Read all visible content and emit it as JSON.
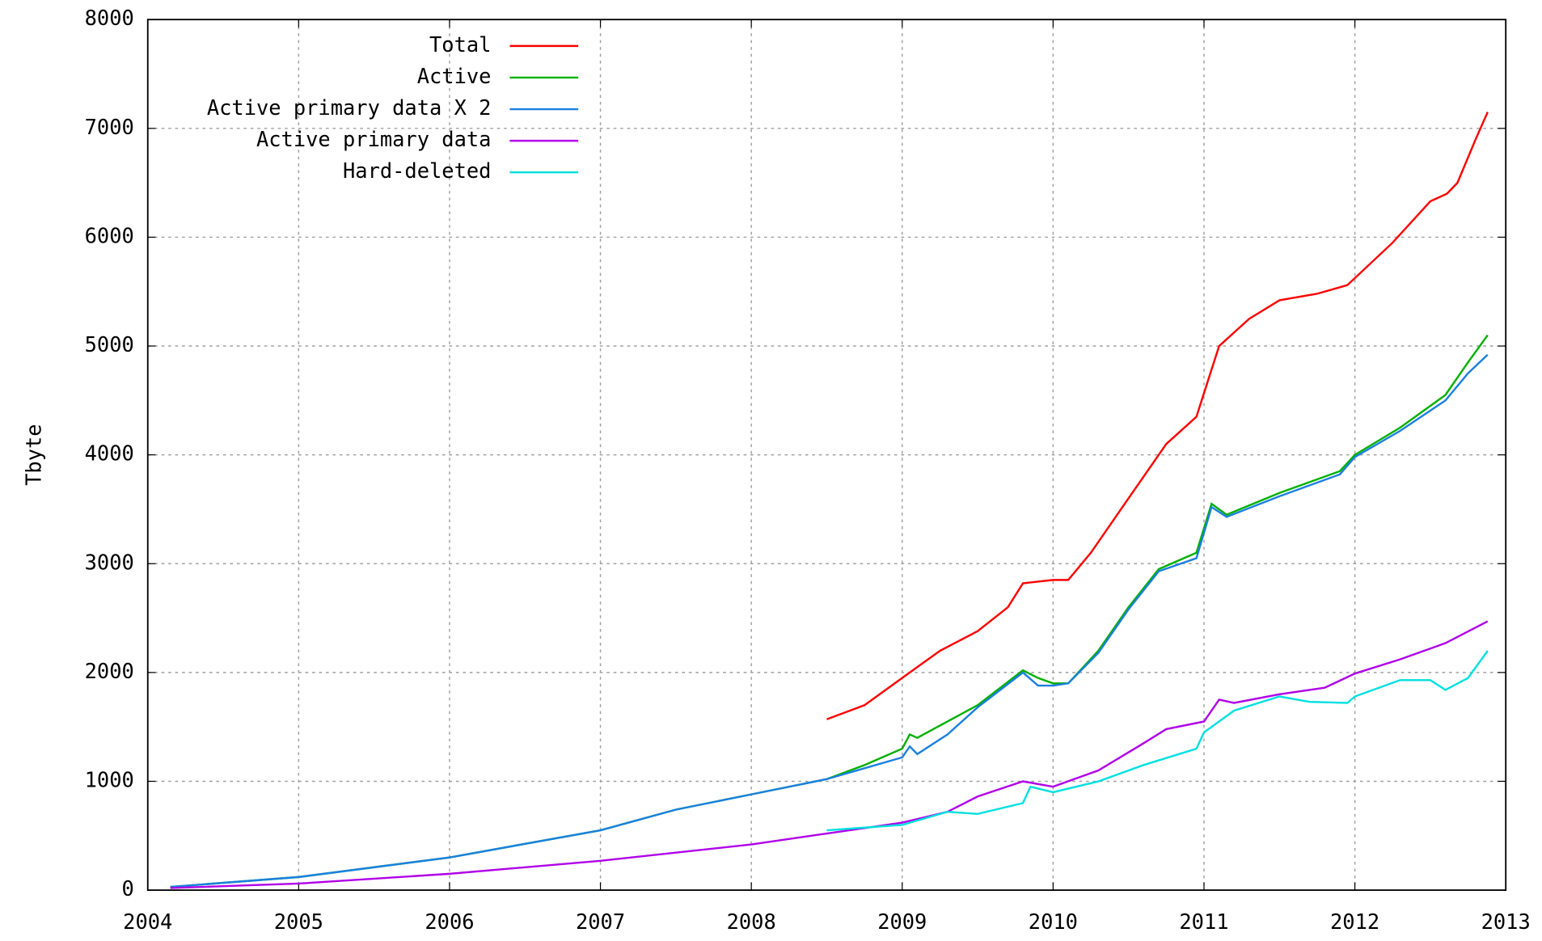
{
  "chart_data": {
    "type": "line",
    "ylabel": "Tbyte",
    "xlim": [
      2004,
      2013
    ],
    "xticks": [
      2004,
      2005,
      2006,
      2007,
      2008,
      2009,
      2010,
      2011,
      2012,
      2013
    ],
    "ylim": [
      0,
      8000
    ],
    "yticks": [
      0,
      1000,
      2000,
      3000,
      4000,
      5000,
      6000,
      7000,
      8000
    ],
    "grid": true,
    "legend": "upper left",
    "series": [
      {
        "name": "Total",
        "color": "#ff0000",
        "x": [
          2008.5,
          2008.75,
          2009.0,
          2009.25,
          2009.5,
          2009.7,
          2009.8,
          2010.0,
          2010.1,
          2010.25,
          2010.5,
          2010.75,
          2010.95,
          2011.1,
          2011.3,
          2011.5,
          2011.75,
          2011.95,
          2012.25,
          2012.5,
          2012.61,
          2012.68,
          2012.8,
          2012.88
        ],
        "values": [
          1570,
          1700,
          1950,
          2200,
          2380,
          2600,
          2820,
          2850,
          2850,
          3100,
          3600,
          4100,
          4350,
          5000,
          5250,
          5420,
          5480,
          5560,
          5950,
          6330,
          6400,
          6500,
          6900,
          7150
        ]
      },
      {
        "name": "Active",
        "color": "#00b000",
        "x": [
          2004.15,
          2005,
          2006,
          2007,
          2007.5,
          2008,
          2008.5,
          2008.75,
          2009.0,
          2009.05,
          2009.1,
          2009.3,
          2009.5,
          2009.8,
          2009.9,
          2010.0,
          2010.1,
          2010.3,
          2010.5,
          2010.7,
          2010.95,
          2011.05,
          2011.15,
          2011.5,
          2011.9,
          2012.0,
          2012.3,
          2012.6,
          2012.75,
          2012.88
        ],
        "values": [
          30,
          120,
          300,
          550,
          740,
          880,
          1020,
          1150,
          1300,
          1430,
          1400,
          1550,
          1700,
          2020,
          1950,
          1900,
          1900,
          2200,
          2600,
          2950,
          3100,
          3550,
          3450,
          3650,
          3850,
          4000,
          4250,
          4550,
          4850,
          5100
        ]
      },
      {
        "name": "Active primary data X 2",
        "color": "#1a80e0",
        "x": [
          2004.15,
          2005,
          2006,
          2007,
          2007.5,
          2008,
          2008.5,
          2008.75,
          2009.0,
          2009.05,
          2009.1,
          2009.3,
          2009.5,
          2009.8,
          2009.9,
          2010.0,
          2010.1,
          2010.3,
          2010.5,
          2010.7,
          2010.95,
          2011.05,
          2011.15,
          2011.5,
          2011.9,
          2012.0,
          2012.3,
          2012.6,
          2012.75,
          2012.88
        ],
        "values": [
          30,
          120,
          300,
          550,
          740,
          880,
          1020,
          1120,
          1220,
          1320,
          1250,
          1430,
          1680,
          2000,
          1880,
          1880,
          1900,
          2180,
          2580,
          2930,
          3050,
          3520,
          3430,
          3620,
          3820,
          3980,
          4220,
          4500,
          4750,
          4920
        ]
      },
      {
        "name": "Active primary data",
        "color": "#b000e8",
        "x": [
          2004.15,
          2005,
          2006,
          2007,
          2008,
          2008.5,
          2009.0,
          2009.3,
          2009.5,
          2009.8,
          2010.0,
          2010.3,
          2010.6,
          2010.75,
          2011.0,
          2011.1,
          2011.2,
          2011.5,
          2011.8,
          2012.0,
          2012.3,
          2012.6,
          2012.88
        ],
        "values": [
          20,
          60,
          150,
          270,
          420,
          520,
          620,
          720,
          860,
          1000,
          950,
          1100,
          1350,
          1480,
          1550,
          1750,
          1720,
          1800,
          1860,
          1990,
          2120,
          2270,
          2470
        ]
      },
      {
        "name": "Hard-deleted",
        "color": "#00e0e0",
        "x": [
          2008.5,
          2009.0,
          2009.3,
          2009.5,
          2009.8,
          2009.85,
          2010.0,
          2010.3,
          2010.6,
          2010.95,
          2011.0,
          2011.2,
          2011.5,
          2011.7,
          2011.95,
          2012.0,
          2012.3,
          2012.5,
          2012.6,
          2012.75,
          2012.88
        ],
        "values": [
          550,
          600,
          720,
          700,
          800,
          950,
          900,
          1000,
          1150,
          1300,
          1450,
          1650,
          1780,
          1730,
          1720,
          1780,
          1930,
          1930,
          1840,
          1950,
          2200
        ]
      }
    ]
  }
}
